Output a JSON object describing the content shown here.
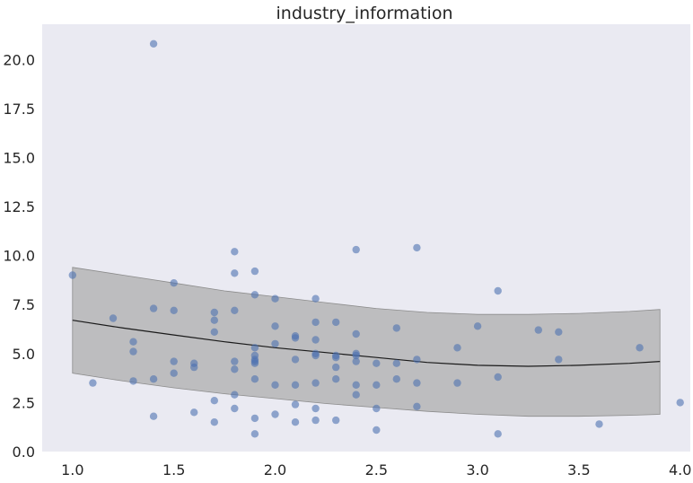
{
  "chart_data": {
    "type": "scatter",
    "title": "industry_information",
    "xlabel": "",
    "ylabel": "",
    "xlim": [
      0.85,
      4.05
    ],
    "ylim": [
      0.0,
      21.8
    ],
    "x_ticks": [
      1.0,
      1.5,
      2.0,
      2.5,
      3.0,
      3.5,
      4.0
    ],
    "x_tick_labels": [
      "1.0",
      "1.5",
      "2.0",
      "2.5",
      "3.0",
      "3.5",
      "4.0"
    ],
    "y_ticks": [
      0.0,
      2.5,
      5.0,
      7.5,
      10.0,
      12.5,
      15.0,
      17.5,
      20.0
    ],
    "y_tick_labels": [
      "0.0",
      "2.5",
      "5.0",
      "7.5",
      "10.0",
      "12.5",
      "15.0",
      "17.5",
      "20.0"
    ],
    "grid": false,
    "background_color": "#eaeaf2",
    "point_color": "#4c72b0",
    "band_color": "#a9a9a9",
    "line_color": "#1a1a1a",
    "points": [
      [
        1.0,
        9.0
      ],
      [
        1.1,
        3.5
      ],
      [
        1.2,
        6.8
      ],
      [
        1.3,
        5.6
      ],
      [
        1.3,
        5.1
      ],
      [
        1.3,
        3.6
      ],
      [
        1.4,
        20.8
      ],
      [
        1.4,
        7.3
      ],
      [
        1.4,
        3.7
      ],
      [
        1.4,
        1.8
      ],
      [
        1.5,
        8.6
      ],
      [
        1.5,
        7.2
      ],
      [
        1.5,
        4.6
      ],
      [
        1.5,
        4.0
      ],
      [
        1.6,
        4.5
      ],
      [
        1.6,
        4.3
      ],
      [
        1.6,
        2.0
      ],
      [
        1.7,
        7.1
      ],
      [
        1.7,
        6.7
      ],
      [
        1.7,
        6.1
      ],
      [
        1.7,
        2.6
      ],
      [
        1.7,
        1.5
      ],
      [
        1.8,
        10.2
      ],
      [
        1.8,
        9.1
      ],
      [
        1.8,
        7.2
      ],
      [
        1.8,
        4.6
      ],
      [
        1.8,
        4.2
      ],
      [
        1.8,
        2.9
      ],
      [
        1.8,
        2.2
      ],
      [
        1.9,
        9.2
      ],
      [
        1.9,
        8.0
      ],
      [
        1.9,
        5.3
      ],
      [
        1.9,
        4.9
      ],
      [
        1.9,
        4.7
      ],
      [
        1.9,
        4.6
      ],
      [
        1.9,
        4.5
      ],
      [
        1.9,
        3.7
      ],
      [
        1.9,
        1.7
      ],
      [
        1.9,
        0.9
      ],
      [
        2.0,
        7.8
      ],
      [
        2.0,
        6.4
      ],
      [
        2.0,
        5.5
      ],
      [
        2.0,
        3.4
      ],
      [
        2.0,
        1.9
      ],
      [
        2.1,
        5.9
      ],
      [
        2.1,
        5.8
      ],
      [
        2.1,
        4.7
      ],
      [
        2.1,
        3.4
      ],
      [
        2.1,
        2.4
      ],
      [
        2.1,
        1.5
      ],
      [
        2.2,
        7.8
      ],
      [
        2.2,
        6.6
      ],
      [
        2.2,
        5.7
      ],
      [
        2.2,
        5.0
      ],
      [
        2.2,
        4.9
      ],
      [
        2.2,
        3.5
      ],
      [
        2.2,
        2.2
      ],
      [
        2.2,
        1.6
      ],
      [
        2.3,
        6.6
      ],
      [
        2.3,
        4.9
      ],
      [
        2.3,
        4.8
      ],
      [
        2.3,
        4.3
      ],
      [
        2.3,
        3.7
      ],
      [
        2.3,
        1.6
      ],
      [
        2.4,
        10.3
      ],
      [
        2.4,
        6.0
      ],
      [
        2.4,
        5.0
      ],
      [
        2.4,
        4.9
      ],
      [
        2.4,
        4.6
      ],
      [
        2.4,
        3.4
      ],
      [
        2.4,
        2.9
      ],
      [
        2.5,
        4.5
      ],
      [
        2.5,
        3.4
      ],
      [
        2.5,
        2.2
      ],
      [
        2.5,
        1.1
      ],
      [
        2.6,
        6.3
      ],
      [
        2.6,
        4.5
      ],
      [
        2.6,
        3.7
      ],
      [
        2.7,
        10.4
      ],
      [
        2.7,
        4.7
      ],
      [
        2.7,
        3.5
      ],
      [
        2.7,
        2.3
      ],
      [
        2.9,
        5.3
      ],
      [
        2.9,
        3.5
      ],
      [
        3.0,
        6.4
      ],
      [
        3.1,
        8.2
      ],
      [
        3.1,
        3.8
      ],
      [
        3.1,
        0.9
      ],
      [
        3.3,
        6.2
      ],
      [
        3.4,
        6.1
      ],
      [
        3.4,
        4.7
      ],
      [
        3.6,
        1.4
      ],
      [
        3.8,
        5.3
      ],
      [
        4.0,
        2.5
      ]
    ],
    "fit_curve": {
      "x": [
        1.0,
        1.25,
        1.5,
        1.75,
        2.0,
        2.25,
        2.5,
        2.75,
        3.0,
        3.25,
        3.5,
        3.75,
        3.9
      ],
      "y": [
        6.7,
        6.3,
        5.95,
        5.6,
        5.3,
        5.05,
        4.8,
        4.55,
        4.4,
        4.35,
        4.4,
        4.5,
        4.6
      ]
    },
    "band_upper": {
      "x": [
        1.0,
        1.25,
        1.5,
        1.75,
        2.0,
        2.25,
        2.5,
        2.75,
        3.0,
        3.25,
        3.5,
        3.75,
        3.9
      ],
      "y": [
        9.4,
        9.0,
        8.6,
        8.2,
        7.9,
        7.6,
        7.3,
        7.1,
        7.0,
        7.0,
        7.05,
        7.15,
        7.25
      ]
    },
    "band_lower": {
      "x": [
        1.0,
        1.25,
        1.5,
        1.75,
        2.0,
        2.25,
        2.5,
        2.75,
        3.0,
        3.25,
        3.5,
        3.75,
        3.9
      ],
      "y": [
        4.0,
        3.6,
        3.25,
        2.95,
        2.7,
        2.45,
        2.25,
        2.05,
        1.9,
        1.8,
        1.8,
        1.85,
        1.9
      ]
    }
  }
}
